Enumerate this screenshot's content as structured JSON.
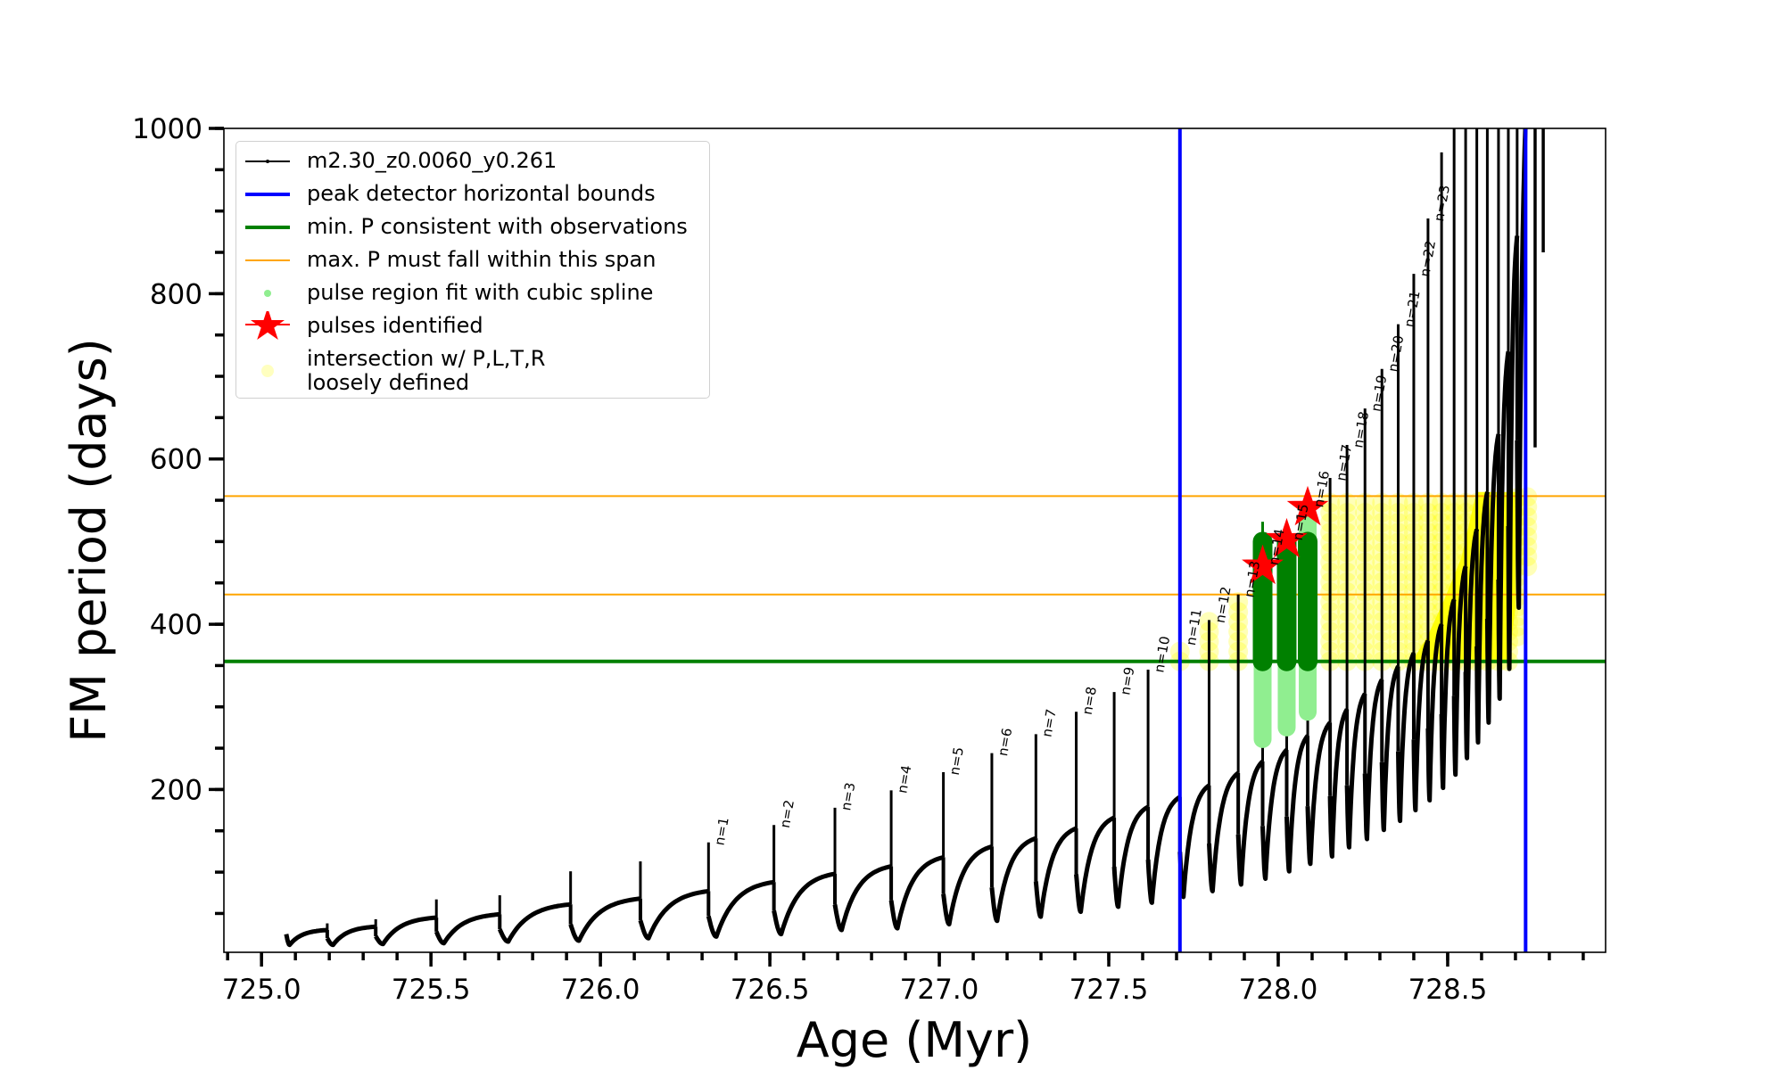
{
  "chart_data": {
    "type": "line",
    "title": "",
    "xlabel": "Age (Myr)",
    "ylabel": "FM period (days)",
    "xlim": [
      724.889,
      728.966
    ],
    "ylim": [
      3,
      1000
    ],
    "grid": false,
    "xticks": {
      "major": [
        "725.0",
        "725.5",
        "726.0",
        "726.5",
        "727.0",
        "727.5",
        "728.0",
        "728.5"
      ],
      "minor_step": 0.1
    },
    "yticks": {
      "major": [
        "200",
        "400",
        "600",
        "800",
        "1000"
      ],
      "minor_step": 50
    },
    "colors": {
      "model": "#000000",
      "bounds": "#0000ff",
      "min_period": "#008000",
      "max_period_span": "#ffa500",
      "spline_fit": "#90ee90",
      "spline_fit_dark": "#008000",
      "pulses_identified": "#ff0000",
      "intersection": "#ffff00"
    },
    "legend": {
      "placement": "upper-left",
      "entries": [
        {
          "label": "m2.30_z0.0060_y0.261",
          "style": "line-dot"
        },
        {
          "label": "peak detector horizontal bounds",
          "style": "thick-line-blue"
        },
        {
          "label": "min. P consistent with observations",
          "style": "thick-line-green"
        },
        {
          "label": "max. P must fall within this span",
          "style": "thin-line-orange"
        },
        {
          "label": "pulse region fit with cubic spline",
          "style": "dot-lightgreen"
        },
        {
          "label": "pulses identified",
          "style": "star-red"
        },
        {
          "label_line1": "intersection w/ P,L,T,R",
          "label_line2": "loosely defined",
          "style": "circle-yellow"
        }
      ]
    },
    "peak_detector_bounds": [
      727.71,
      728.73
    ],
    "min_period": 355,
    "max_period_span": [
      436,
      555
    ],
    "start": {
      "age": 725.073,
      "value": 25,
      "trough": 12
    },
    "pulses": [
      {
        "age": 725.194,
        "plateau": 30,
        "peak": 38,
        "trough": 12,
        "label": ""
      },
      {
        "age": 725.337,
        "plateau": 34,
        "peak": 43,
        "trough": 13,
        "label": ""
      },
      {
        "age": 725.516,
        "plateau": 45,
        "peak": 67,
        "trough": 14,
        "label": ""
      },
      {
        "age": 725.703,
        "plateau": 49,
        "peak": 72,
        "trough": 16,
        "label": ""
      },
      {
        "age": 725.912,
        "plateau": 61,
        "peak": 101,
        "trough": 17,
        "label": ""
      },
      {
        "age": 726.118,
        "plateau": 68,
        "peak": 113,
        "trough": 20,
        "label": ""
      },
      {
        "age": 726.319,
        "plateau": 77,
        "peak": 136,
        "trough": 22,
        "label": "n=1"
      },
      {
        "age": 726.512,
        "plateau": 88,
        "peak": 157,
        "trough": 25,
        "label": "n=2"
      },
      {
        "age": 726.692,
        "plateau": 98,
        "peak": 178,
        "trough": 30,
        "label": "n=3"
      },
      {
        "age": 726.858,
        "plateau": 107,
        "peak": 199,
        "trough": 32,
        "label": "n=4"
      },
      {
        "age": 727.012,
        "plateau": 118,
        "peak": 221,
        "trough": 37,
        "label": "n=5"
      },
      {
        "age": 727.155,
        "plateau": 131,
        "peak": 244,
        "trough": 41,
        "label": "n=6"
      },
      {
        "age": 727.285,
        "plateau": 141,
        "peak": 267,
        "trough": 46,
        "label": "n=7"
      },
      {
        "age": 727.404,
        "plateau": 153,
        "peak": 294,
        "trough": 52,
        "label": "n=8"
      },
      {
        "age": 727.516,
        "plateau": 166,
        "peak": 318,
        "trough": 58,
        "label": "n=9"
      },
      {
        "age": 727.616,
        "plateau": 179,
        "peak": 345,
        "trough": 63,
        "label": "n=10"
      },
      {
        "age": 727.71,
        "plateau": 191,
        "peak": 378,
        "trough": 70,
        "label": "n=11"
      },
      {
        "age": 727.796,
        "plateau": 205,
        "peak": 405,
        "trough": 77,
        "label": "n=12"
      },
      {
        "age": 727.882,
        "plateau": 220,
        "peak": 436,
        "trough": 85,
        "label": "n=13"
      },
      {
        "age": 727.954,
        "plateau": 234,
        "peak": 475,
        "trough": 92,
        "label": "n=14"
      },
      {
        "age": 728.025,
        "plateau": 248,
        "peak": 505,
        "trough": 101,
        "label": "n=15"
      },
      {
        "age": 728.087,
        "plateau": 265,
        "peak": 545,
        "trough": 110,
        "label": "n=16"
      },
      {
        "age": 728.153,
        "plateau": 281,
        "peak": 577,
        "trough": 119,
        "label": "n=17"
      },
      {
        "age": 728.203,
        "plateau": 297,
        "peak": 617,
        "trough": 130,
        "label": "n=18"
      },
      {
        "age": 728.256,
        "plateau": 316,
        "peak": 661,
        "trough": 140,
        "label": "n=19"
      },
      {
        "age": 728.306,
        "plateau": 333,
        "peak": 709,
        "trough": 151,
        "label": "n=20"
      },
      {
        "age": 728.354,
        "plateau": 349,
        "peak": 763,
        "trough": 162,
        "label": "n=21"
      },
      {
        "age": 728.4,
        "plateau": 365,
        "peak": 824,
        "trough": 175,
        "label": "n=22"
      },
      {
        "age": 728.442,
        "plateau": 380,
        "peak": 891,
        "trough": 187,
        "label": "n=23"
      },
      {
        "age": 728.482,
        "plateau": 400,
        "peak": 971,
        "trough": 202,
        "label": ""
      },
      {
        "age": 728.519,
        "plateau": 430,
        "peak": 1100,
        "trough": 218,
        "label": ""
      },
      {
        "age": 728.553,
        "plateau": 470,
        "peak": 1100,
        "trough": 238,
        "label": ""
      },
      {
        "age": 728.586,
        "plateau": 515,
        "peak": 1100,
        "trough": 257,
        "label": ""
      },
      {
        "age": 728.617,
        "plateau": 560,
        "peak": 1100,
        "trough": 281,
        "label": ""
      },
      {
        "age": 728.65,
        "plateau": 630,
        "peak": 1100,
        "trough": 310,
        "label": ""
      },
      {
        "age": 728.679,
        "plateau": 730,
        "peak": 1100,
        "trough": 346,
        "label": ""
      },
      {
        "age": 728.705,
        "plateau": 870,
        "peak": 1100,
        "trough": 420,
        "label": ""
      }
    ],
    "end": {
      "age": 728.745,
      "value": 1100
    },
    "tail_drops": [
      [
        728.758,
        1100,
        614
      ],
      [
        728.782,
        1100,
        850
      ]
    ],
    "spline_fit_dark": [
      [
        727.954,
        355,
        500
      ],
      [
        728.025,
        355,
        500
      ],
      [
        728.087,
        355,
        500
      ]
    ],
    "spline_fit_thin": [
      [
        727.954,
        500,
        524
      ]
    ],
    "spline_fit_light": [
      [
        727.954,
        261,
        355
      ],
      [
        728.025,
        275,
        355
      ],
      [
        728.087,
        294,
        355
      ],
      [
        728.087,
        500,
        530
      ]
    ],
    "identified_pulses": [
      [
        727.954,
        470
      ],
      [
        728.025,
        502
      ],
      [
        728.087,
        541
      ]
    ],
    "intersection_columns": [
      [
        727.71,
        355,
        378
      ],
      [
        727.796,
        355,
        405
      ],
      [
        727.882,
        355,
        436
      ],
      [
        728.153,
        355,
        555
      ],
      [
        728.203,
        355,
        555
      ],
      [
        728.256,
        355,
        555
      ],
      [
        728.306,
        355,
        555
      ],
      [
        728.354,
        355,
        555
      ],
      [
        728.4,
        355,
        555
      ],
      [
        728.442,
        355,
        555
      ],
      [
        728.482,
        355,
        555
      ],
      [
        728.519,
        355,
        555
      ],
      [
        728.553,
        355,
        555
      ],
      [
        728.586,
        355,
        555
      ],
      [
        728.617,
        355,
        555
      ],
      [
        728.65,
        355,
        555
      ],
      [
        728.679,
        355,
        555
      ],
      [
        728.705,
        385,
        555
      ],
      [
        728.735,
        470,
        555
      ]
    ],
    "intersection_region": [
      [
        728.395,
        355
      ],
      [
        728.44,
        385
      ],
      [
        728.49,
        430
      ],
      [
        728.54,
        480
      ],
      [
        728.585,
        560
      ],
      [
        728.7,
        560
      ],
      [
        728.7,
        420
      ],
      [
        728.68,
        355
      ]
    ]
  }
}
